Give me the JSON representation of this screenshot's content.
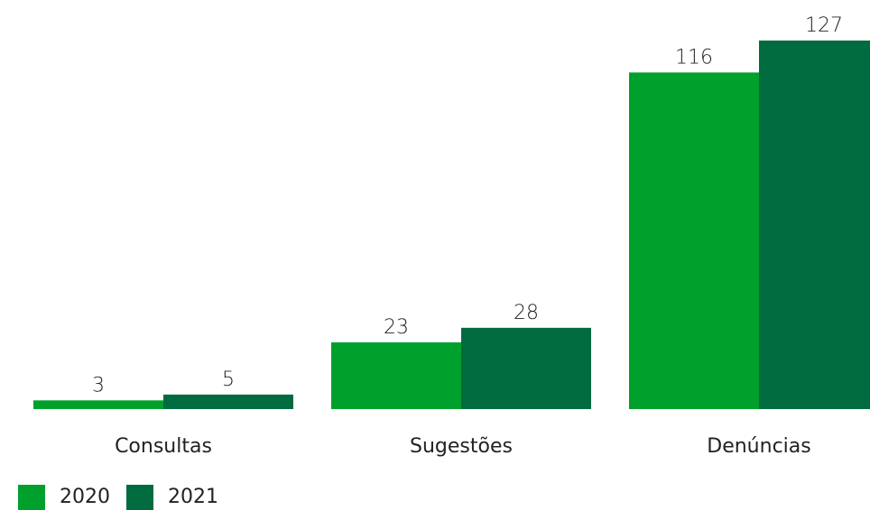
{
  "colors": {
    "series_2020": "#00a02c",
    "series_2021": "#006b3f"
  },
  "chart_data": {
    "type": "bar",
    "categories": [
      "Consultas",
      "Sugestões",
      "Denúncias"
    ],
    "series": [
      {
        "name": "2020",
        "values": [
          3,
          23,
          116
        ]
      },
      {
        "name": "2021",
        "values": [
          5,
          28,
          127
        ]
      }
    ],
    "ylim": [
      0,
      127
    ],
    "grid": false,
    "legend_position": "bottom-left"
  }
}
